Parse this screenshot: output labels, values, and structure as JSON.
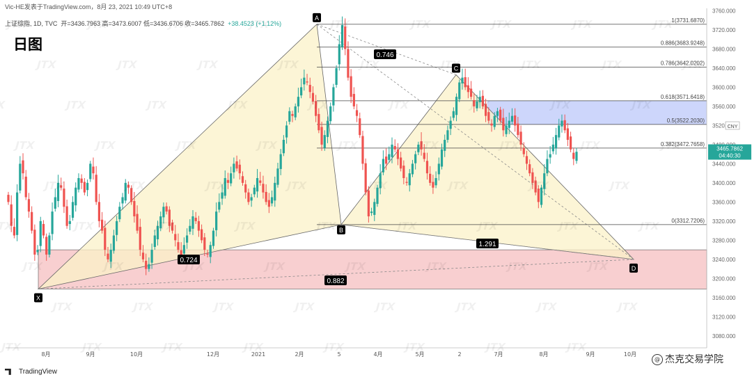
{
  "header": {
    "publisher_line": "Vic-HE发表于TradingView.com，8月 23, 2021 10:49 UTC+8",
    "symbol_line": "上证综指, 1D, TVC",
    "ohlc": "开=3436.7963  高=3473.6007  低=3436.6706  收=3465.7862",
    "change": "+38.4523 (+1.12%)",
    "timeframe": "日图"
  },
  "brand": {
    "name": "TradingView"
  },
  "credit": {
    "text": "杰克交易学院"
  },
  "watermark": "JTX",
  "chart_data": {
    "type": "candlestick",
    "currency": "CNY",
    "last_price": "3465.7862",
    "countdown": "04:40:30",
    "y_ticks": [
      3080,
      3120,
      3160,
      3200,
      3240,
      3280,
      3320,
      3360,
      3400,
      3440,
      3480,
      3520,
      3560,
      3600,
      3640,
      3680,
      3720,
      3760
    ],
    "ylim": [
      3055,
      3765
    ],
    "x_ticks": [
      "8月",
      "9月",
      "10月",
      "12月",
      "2021",
      "2月",
      "5",
      "4月",
      "5月",
      "2",
      "7月",
      "8月",
      "9月",
      "10月"
    ],
    "harmonic": {
      "points": [
        {
          "label": "X",
          "date": "2020-07-30",
          "price": 3178
        },
        {
          "label": "A",
          "date": "2021-02-18",
          "price": 3731.69
        },
        {
          "label": "B",
          "date": "2021-03-09",
          "price": 3312.72
        },
        {
          "label": "C",
          "date": "2021-06-01",
          "price": 3626
        },
        {
          "label": "D",
          "date": "2021-09-29",
          "price": 3240
        }
      ],
      "ratios": [
        {
          "value": "0.746",
          "between": [
            "X",
            "B"
          ]
        },
        {
          "value": "0.724",
          "between": [
            "X",
            "C"
          ]
        },
        {
          "value": "1.291",
          "between": [
            "B",
            "D"
          ]
        },
        {
          "value": "0.882",
          "between": [
            "X",
            "D"
          ]
        }
      ]
    },
    "fib_levels": [
      {
        "label": "1(3731.6870)",
        "price": 3731.687
      },
      {
        "label": "0.886(3683.9248)",
        "price": 3683.9248
      },
      {
        "label": "0.786(3642.0202)",
        "price": 3642.0202
      },
      {
        "label": "0.618(3571.6418)",
        "price": 3571.6418
      },
      {
        "label": "0.5(3522.2030)",
        "price": 3522.203
      },
      {
        "label": "0.382(3472.7658)",
        "price": 3472.7658
      },
      {
        "label": "0(3312.7206)",
        "price": 3312.7206
      }
    ],
    "zones": [
      {
        "name": "target",
        "from": 3178,
        "to": 3260,
        "color": "#f8cfd0"
      },
      {
        "name": "resistance",
        "from": 3522.2,
        "to": 3571.6,
        "color": "#cdd6fb"
      }
    ],
    "colors": {
      "up": "#26a69a",
      "down": "#ef5350",
      "pattern_fill": "#fbf1c8",
      "pattern_line": "#777777"
    },
    "candles_close": [
      3360,
      3310,
      3290,
      3380,
      3440,
      3420,
      3370,
      3340,
      3300,
      3250,
      3260,
      3320,
      3290,
      3250,
      3290,
      3340,
      3370,
      3400,
      3390,
      3350,
      3310,
      3320,
      3360,
      3390,
      3410,
      3400,
      3380,
      3400,
      3440,
      3420,
      3360,
      3320,
      3300,
      3260,
      3240,
      3260,
      3290,
      3320,
      3350,
      3370,
      3400,
      3390,
      3360,
      3330,
      3300,
      3260,
      3240,
      3220,
      3230,
      3260,
      3290,
      3310,
      3330,
      3350,
      3340,
      3310,
      3300,
      3280,
      3260,
      3250,
      3270,
      3290,
      3310,
      3330,
      3320,
      3300,
      3280,
      3260,
      3250,
      3270,
      3300,
      3340,
      3360,
      3380,
      3410,
      3400,
      3420,
      3440,
      3430,
      3420,
      3400,
      3380,
      3360,
      3370,
      3390,
      3410,
      3400,
      3380,
      3360,
      3350,
      3370,
      3400,
      3430,
      3460,
      3490,
      3520,
      3550,
      3540,
      3560,
      3580,
      3600,
      3620,
      3610,
      3590,
      3570,
      3540,
      3510,
      3480,
      3500,
      3530,
      3560,
      3600,
      3640,
      3690,
      3730,
      3680,
      3620,
      3580,
      3560,
      3540,
      3500,
      3440,
      3380,
      3330,
      3340,
      3360,
      3390,
      3420,
      3450,
      3440,
      3460,
      3480,
      3470,
      3450,
      3430,
      3410,
      3400,
      3420,
      3440,
      3460,
      3480,
      3470,
      3450,
      3420,
      3400,
      3390,
      3410,
      3440,
      3470,
      3490,
      3510,
      3530,
      3550,
      3580,
      3610,
      3620,
      3600,
      3590,
      3580,
      3560,
      3570,
      3580,
      3560,
      3540,
      3530,
      3520,
      3540,
      3550,
      3530,
      3510,
      3520,
      3530,
      3540,
      3520,
      3500,
      3480,
      3460,
      3440,
      3420,
      3400,
      3380,
      3360,
      3390,
      3420,
      3450,
      3460,
      3480,
      3500,
      3520,
      3530,
      3510,
      3490,
      3470,
      3450,
      3465
    ]
  }
}
